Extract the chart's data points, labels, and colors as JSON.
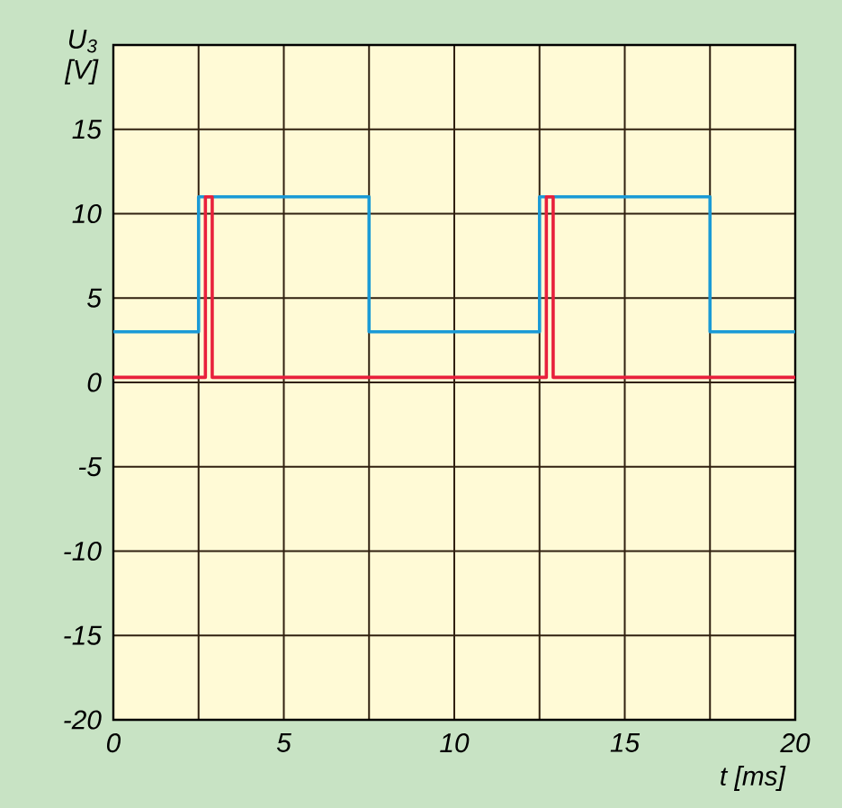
{
  "chart_data": {
    "type": "line",
    "ylabel": "U$_{3}$ [V]",
    "xlabel": "t [ms]",
    "xlim": [
      0,
      20
    ],
    "ylim": [
      -20,
      20
    ],
    "xticks": [
      0,
      {
        "value": 2.5,
        "label": null
      },
      5,
      {
        "value": 7.5,
        "label": null
      },
      10,
      {
        "value": 12.5,
        "label": null
      },
      15,
      {
        "value": 17.5,
        "label": null
      },
      20
    ],
    "yticks": [
      -20,
      -15,
      -10,
      -5,
      0,
      5,
      10,
      15
    ],
    "grid": true,
    "line_style": "solid",
    "series": [
      {
        "color": "#1a9ad6",
        "x": [
          0,
          2.5,
          2.5,
          7.5,
          7.5,
          12.5,
          12.5,
          17.5,
          17.5,
          20
        ],
        "values": [
          3,
          3,
          11,
          11,
          3,
          3,
          11,
          11,
          3,
          3
        ]
      },
      {
        "color": "#e8203c",
        "x": [
          0,
          2.7,
          2.7,
          2.9,
          2.9,
          12.7,
          12.7,
          12.9,
          12.9,
          20
        ],
        "values": [
          0.3,
          0.3,
          11,
          11,
          0.3,
          0.3,
          11,
          11,
          0.3,
          0.3
        ]
      }
    ]
  }
}
